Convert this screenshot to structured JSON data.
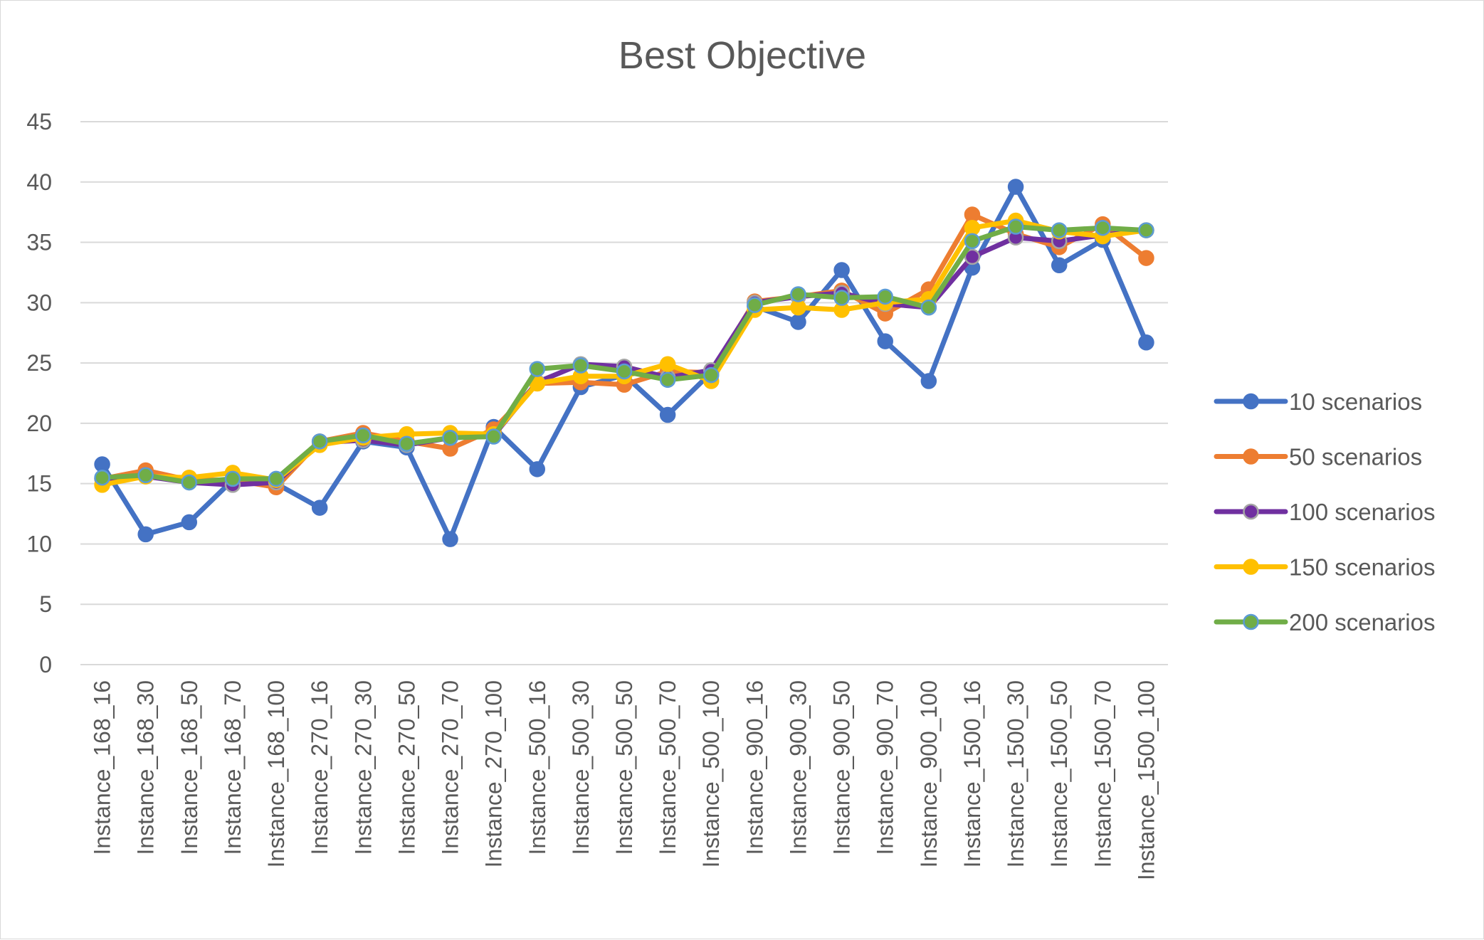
{
  "chart_data": {
    "type": "line",
    "title": "Best Objective",
    "xlabel": "",
    "ylabel": "",
    "ylim": [
      0,
      45
    ],
    "yticks": [
      "0",
      "5",
      "10",
      "15",
      "20",
      "25",
      "30",
      "35",
      "40",
      "45"
    ],
    "grid": true,
    "legend_position": "right",
    "categories": [
      "Instance_168_16",
      "Instance_168_30",
      "Instance_168_50",
      "Instance_168_70",
      "Instance_168_100",
      "Instance_270_16",
      "Instance_270_30",
      "Instance_270_50",
      "Instance_270_70",
      "Instance_270_100",
      "Instance_500_16",
      "Instance_500_30",
      "Instance_500_50",
      "Instance_500_70",
      "Instance_500_100",
      "Instance_900_16",
      "Instance_900_30",
      "Instance_900_50",
      "Instance_900_70",
      "Instance_900_100",
      "Instance_1500_16",
      "Instance_1500_30",
      "Instance_1500_50",
      "Instance_1500_70",
      "Instance_1500_100"
    ],
    "series": [
      {
        "name": "10 scenarios",
        "color": "#4472C4",
        "marker_edge": "#4472C4",
        "values": [
          16.6,
          10.8,
          11.8,
          15.3,
          15.0,
          13.0,
          18.5,
          18.0,
          10.4,
          19.7,
          16.2,
          23.0,
          24.0,
          20.7,
          24.2,
          29.7,
          28.4,
          32.7,
          26.8,
          23.5,
          32.9,
          39.6,
          33.1,
          35.2,
          26.7
        ]
      },
      {
        "name": "50 scenarios",
        "color": "#ED7D31",
        "marker_edge": "#ED7D31",
        "values": [
          15.4,
          16.1,
          15.3,
          15.3,
          14.7,
          18.5,
          19.2,
          18.5,
          17.9,
          19.5,
          23.3,
          23.4,
          23.2,
          24.3,
          24.2,
          30.1,
          30.5,
          31.0,
          29.1,
          31.1,
          37.3,
          35.7,
          34.6,
          36.5,
          33.7
        ]
      },
      {
        "name": "100 scenarios",
        "color": "#7030A0",
        "marker_edge": "#A5A5A5",
        "values": [
          15.4,
          15.6,
          15.1,
          14.9,
          15.1,
          18.4,
          18.6,
          18.2,
          18.8,
          19.0,
          23.4,
          24.9,
          24.7,
          23.8,
          24.4,
          30.0,
          30.5,
          30.8,
          29.9,
          29.6,
          33.8,
          35.4,
          35.1,
          35.6,
          36.0
        ]
      },
      {
        "name": "150 scenarios",
        "color": "#FFC000",
        "marker_edge": "#FFC000",
        "values": [
          14.9,
          15.6,
          15.5,
          15.9,
          15.3,
          18.2,
          18.8,
          19.1,
          19.2,
          19.1,
          23.3,
          23.9,
          23.9,
          24.9,
          23.5,
          29.4,
          29.6,
          29.4,
          30.0,
          30.3,
          36.2,
          36.8,
          35.9,
          35.5,
          36.0
        ]
      },
      {
        "name": "200 scenarios",
        "color": "#70AD47",
        "marker_edge": "#5B9BD5",
        "values": [
          15.5,
          15.7,
          15.1,
          15.4,
          15.4,
          18.5,
          19.0,
          18.3,
          18.8,
          18.9,
          24.5,
          24.8,
          24.3,
          23.6,
          24.0,
          29.8,
          30.7,
          30.4,
          30.5,
          29.6,
          35.1,
          36.3,
          36.0,
          36.2,
          36.0
        ]
      }
    ]
  }
}
